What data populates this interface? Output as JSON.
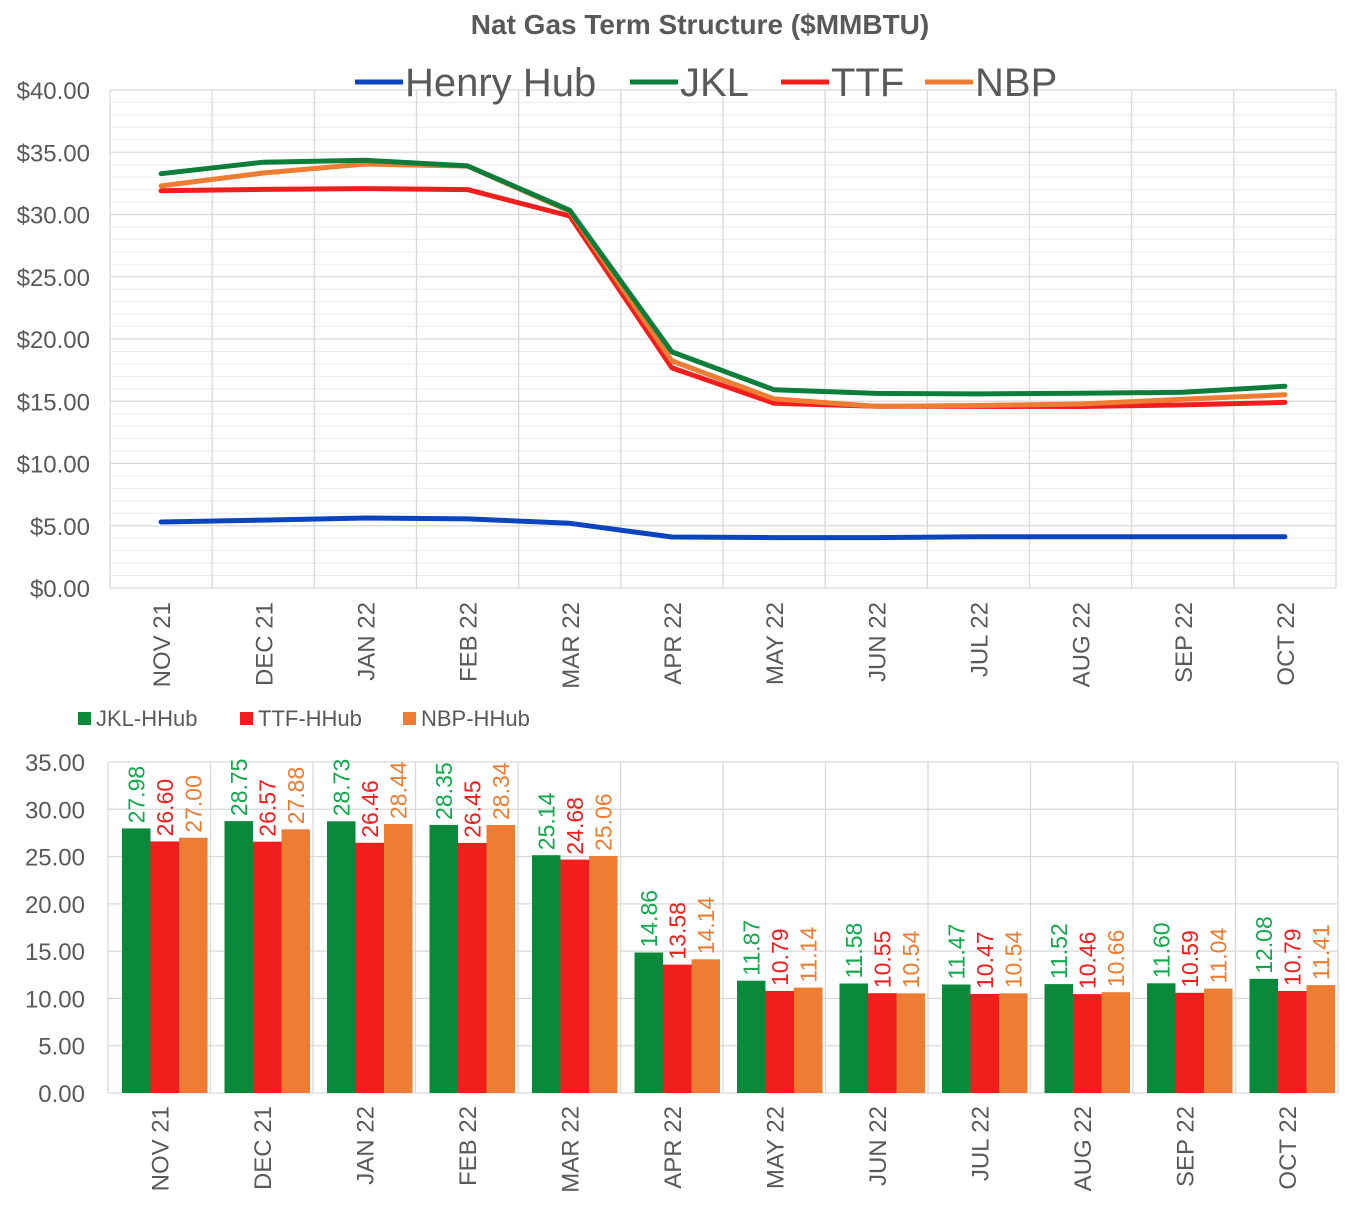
{
  "colors": {
    "henry_hub": "#0a45bf",
    "jkl": "#0c7e3a",
    "ttf": "#f21d1d",
    "nbp": "#ec7d32",
    "jkl_spread": "#0a893b",
    "jkl_label": "#12a84c",
    "grid_major": "#d9d9d9",
    "grid_minor": "#ebebeb",
    "text": "#595959"
  },
  "chart_data": [
    {
      "type": "line",
      "title": "Nat Gas Term Structure ($MMBTU)",
      "categories": [
        "NOV 21",
        "DEC 21",
        "JAN 22",
        "FEB 22",
        "MAR 22",
        "APR 22",
        "MAY 22",
        "JUN 22",
        "JUL 22",
        "AUG 22",
        "SEP 22",
        "OCT 22"
      ],
      "ylim": [
        0,
        40
      ],
      "yticks": [
        "$0.00",
        "$5.00",
        "$10.00",
        "$15.00",
        "$20.00",
        "$25.00",
        "$30.00",
        "$35.00",
        "$40.00"
      ],
      "grid": true,
      "legend_position": "top",
      "series": [
        {
          "name": "Henry Hub",
          "values": [
            5.3,
            5.45,
            5.62,
            5.55,
            5.2,
            4.1,
            4.05,
            4.05,
            4.12,
            4.12,
            4.12,
            4.12
          ]
        },
        {
          "name": "JKL",
          "values": [
            33.28,
            34.2,
            34.35,
            33.9,
            30.34,
            18.96,
            15.92,
            15.63,
            15.59,
            15.64,
            15.72,
            16.2
          ]
        },
        {
          "name": "TTF",
          "values": [
            31.9,
            32.02,
            32.08,
            32.0,
            29.88,
            17.68,
            14.84,
            14.6,
            14.59,
            14.58,
            14.71,
            14.91
          ]
        },
        {
          "name": "NBP",
          "values": [
            32.3,
            33.33,
            34.06,
            33.89,
            30.26,
            18.24,
            15.19,
            14.59,
            14.66,
            14.78,
            15.16,
            15.53
          ]
        }
      ]
    },
    {
      "type": "bar",
      "categories": [
        "NOV 21",
        "DEC 21",
        "JAN 22",
        "FEB 22",
        "MAR 22",
        "APR 22",
        "MAY 22",
        "JUN 22",
        "JUL 22",
        "AUG 22",
        "SEP 22",
        "OCT 22"
      ],
      "ylim": [
        0,
        35
      ],
      "yticks": [
        "0.00",
        "5.00",
        "10.00",
        "15.00",
        "20.00",
        "25.00",
        "30.00",
        "35.00"
      ],
      "grid": true,
      "legend_position": "top-left",
      "series": [
        {
          "name": "JKL-HHub",
          "values": [
            27.98,
            28.75,
            28.73,
            28.35,
            25.14,
            14.86,
            11.87,
            11.58,
            11.47,
            11.52,
            11.6,
            12.08
          ],
          "labels": [
            "27.98",
            "28.75",
            "28.73",
            "28.35",
            "25.14",
            "14.86",
            "11.87",
            "11.58",
            "11.47",
            "11.52",
            "11.60",
            "12.08"
          ]
        },
        {
          "name": "TTF-HHub",
          "values": [
            26.6,
            26.57,
            26.46,
            26.45,
            24.68,
            13.58,
            10.79,
            10.55,
            10.47,
            10.46,
            10.59,
            10.79
          ],
          "labels": [
            "26.60",
            "26.57",
            "26.46",
            "26.45",
            "24.68",
            "13.58",
            "10.79",
            "10.55",
            "10.47",
            "10.46",
            "10.59",
            "10.79"
          ]
        },
        {
          "name": "NBP-HHub",
          "values": [
            27.0,
            27.88,
            28.44,
            28.34,
            25.06,
            14.14,
            11.14,
            10.54,
            10.54,
            10.66,
            11.04,
            11.41
          ],
          "labels": [
            "27.00",
            "27.88",
            "28.44",
            "28.34",
            "25.06",
            "14.14",
            "11.14",
            "10.54",
            "10.54",
            "10.66",
            "11.04",
            "11.41"
          ]
        }
      ]
    }
  ]
}
